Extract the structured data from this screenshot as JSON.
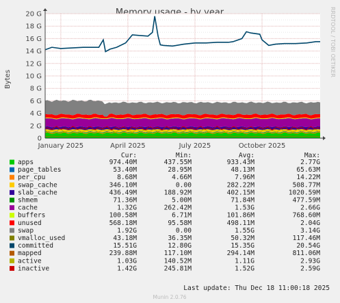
{
  "colors": {
    "background": "#f0f0f0",
    "plot_background": "#ffffff",
    "grid_major": "#e0b0b0",
    "grid_minor": "#e6e6e6",
    "axis": "#444444"
  },
  "chart_data": {
    "type": "area",
    "title": "Memory usage - by year",
    "ylabel": "Bytes",
    "side_label": "RRDTOOL / TOBI OETIKER",
    "x_ticks": [
      "January 2025",
      "April 2025",
      "July 2025",
      "October 2025"
    ],
    "x_tick_months": [
      1,
      4,
      7,
      10
    ],
    "x_range_months": [
      0.3,
      12.6
    ],
    "y_ticks": [
      "0",
      "2 G",
      "4 G",
      "6 G",
      "8 G",
      "10 G",
      "12 G",
      "14 G",
      "16 G",
      "18 G",
      "20 G"
    ],
    "ylim": [
      0,
      20
    ],
    "y_unit": "GB",
    "stacked_series": [
      {
        "name": "apps",
        "value": 0.97,
        "color": "#00cc00"
      },
      {
        "name": "page_tables",
        "value": 0.05,
        "color": "#0066b3"
      },
      {
        "name": "per_cpu",
        "value": 0.01,
        "color": "#ff8000"
      },
      {
        "name": "swap_cache",
        "value": 0.35,
        "color": "#ffcc00"
      },
      {
        "name": "slab_cache",
        "value": 0.44,
        "color": "#330099"
      },
      {
        "name": "cache",
        "value": 1.32,
        "color": "#990099"
      },
      {
        "name": "buffers",
        "value": 0.1,
        "color": "#ccff00"
      },
      {
        "name": "unused",
        "value": 0.57,
        "color": "#ff0000"
      },
      {
        "name": "swap",
        "value": 1.92,
        "color": "#808080"
      }
    ],
    "line_series": [
      {
        "name": "committed",
        "color": "#00476b",
        "points": [
          [
            0.3,
            14.2
          ],
          [
            0.6,
            14.6
          ],
          [
            1.0,
            14.4
          ],
          [
            1.5,
            14.5
          ],
          [
            2.0,
            14.6
          ],
          [
            2.5,
            14.6
          ],
          [
            2.7,
            14.6
          ],
          [
            2.9,
            15.8
          ],
          [
            3.0,
            13.9
          ],
          [
            3.2,
            14.3
          ],
          [
            3.5,
            14.6
          ],
          [
            3.9,
            15.3
          ],
          [
            4.2,
            16.6
          ],
          [
            4.5,
            16.5
          ],
          [
            4.9,
            16.4
          ],
          [
            5.1,
            17.0
          ],
          [
            5.2,
            19.6
          ],
          [
            5.35,
            16.4
          ],
          [
            5.45,
            15.0
          ],
          [
            5.6,
            14.9
          ],
          [
            6.0,
            14.8
          ],
          [
            6.5,
            15.1
          ],
          [
            7.0,
            15.3
          ],
          [
            7.5,
            15.3
          ],
          [
            8.0,
            15.4
          ],
          [
            8.5,
            15.4
          ],
          [
            8.7,
            15.5
          ],
          [
            9.1,
            16.0
          ],
          [
            9.3,
            17.1
          ],
          [
            9.5,
            16.9
          ],
          [
            9.9,
            16.7
          ],
          [
            10.0,
            15.8
          ],
          [
            10.3,
            14.9
          ],
          [
            10.6,
            15.1
          ],
          [
            11.0,
            15.2
          ],
          [
            11.5,
            15.2
          ],
          [
            12.0,
            15.3
          ],
          [
            12.4,
            15.5
          ],
          [
            12.6,
            15.5
          ]
        ]
      },
      {
        "name": "mapped",
        "color": "#ff8000",
        "level": 0.85
      },
      {
        "name": "active",
        "color": "#b3b300",
        "level": 1.2
      },
      {
        "name": "inactive",
        "color": "#cc0000",
        "level": 1.6
      },
      {
        "name": "vmalloc_used",
        "color": "#808000",
        "level": 0.3
      }
    ]
  },
  "legend": {
    "headers": {
      "cur": "Cur:",
      "min": "Min:",
      "avg": "Avg:",
      "max": "Max:"
    },
    "rows": [
      {
        "name": "apps",
        "color": "#00cc00",
        "cur": "974.40M",
        "min": "437.55M",
        "avg": "933.43M",
        "max": "2.77G"
      },
      {
        "name": "page_tables",
        "color": "#0066b3",
        "cur": "53.40M",
        "min": "28.95M",
        "avg": "48.13M",
        "max": "65.63M"
      },
      {
        "name": "per_cpu",
        "color": "#ff8000",
        "cur": "8.68M",
        "min": "4.66M",
        "avg": "7.96M",
        "max": "14.22M"
      },
      {
        "name": "swap_cache",
        "color": "#ffcc00",
        "cur": "346.10M",
        "min": "0.00",
        "avg": "282.22M",
        "max": "508.77M"
      },
      {
        "name": "slab_cache",
        "color": "#330099",
        "cur": "436.49M",
        "min": "188.92M",
        "avg": "402.15M",
        "max": "1020.59M"
      },
      {
        "name": "shmem",
        "color": "#008f00",
        "cur": "71.36M",
        "min": "5.00M",
        "avg": "71.84M",
        "max": "477.59M"
      },
      {
        "name": "cache",
        "color": "#990099",
        "cur": "1.32G",
        "min": "262.42M",
        "avg": "1.53G",
        "max": "2.66G"
      },
      {
        "name": "buffers",
        "color": "#ccff00",
        "cur": "100.58M",
        "min": "6.71M",
        "avg": "101.86M",
        "max": "768.60M"
      },
      {
        "name": "unused",
        "color": "#ff0000",
        "cur": "568.18M",
        "min": "95.58M",
        "avg": "498.11M",
        "max": "2.04G"
      },
      {
        "name": "swap",
        "color": "#808080",
        "cur": "1.92G",
        "min": "0.00",
        "avg": "1.55G",
        "max": "3.14G"
      },
      {
        "name": "vmalloc_used",
        "color": "#808000",
        "cur": "43.18M",
        "min": "36.35M",
        "avg": "50.32M",
        "max": "117.46M"
      },
      {
        "name": "committed",
        "color": "#00476b",
        "cur": "15.51G",
        "min": "12.80G",
        "avg": "15.35G",
        "max": "20.54G"
      },
      {
        "name": "mapped",
        "color": "#b35a00",
        "cur": "239.88M",
        "min": "117.10M",
        "avg": "294.14M",
        "max": "811.06M"
      },
      {
        "name": "active",
        "color": "#b3b300",
        "cur": "1.03G",
        "min": "140.52M",
        "avg": "1.11G",
        "max": "2.93G"
      },
      {
        "name": "inactive",
        "color": "#cc0000",
        "cur": "1.42G",
        "min": "245.81M",
        "avg": "1.52G",
        "max": "2.59G"
      }
    ]
  },
  "last_update": "Last update:  Thu Dec 18 11:00:18 2025",
  "footer": "Munin 2.0.76"
}
